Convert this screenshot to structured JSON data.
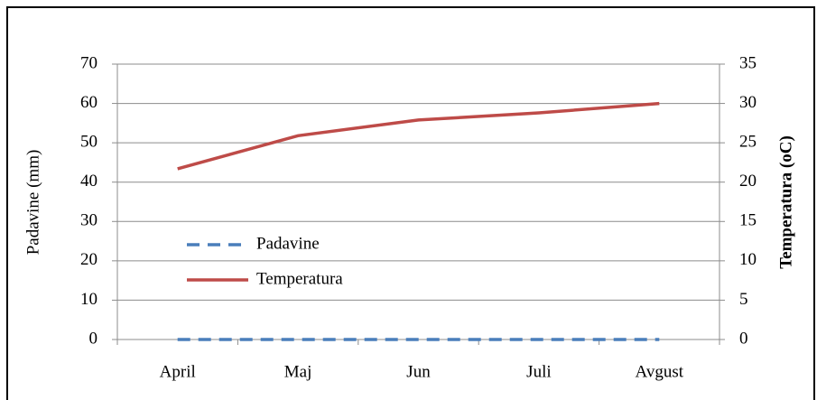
{
  "chart_data": {
    "type": "line",
    "categories": [
      "April",
      "Maj",
      "Jun",
      "Juli",
      "Avgust"
    ],
    "series": [
      {
        "name": "Padavine",
        "color": "#4a7ebb",
        "dash": true,
        "values": [
          0,
          0,
          0,
          0,
          0
        ]
      },
      {
        "name": "Temperatura",
        "color": "#be4b48",
        "axis": "y2",
        "values": [
          21.7,
          25.9,
          27.9,
          28.8,
          30.0
        ]
      }
    ],
    "ylabel": "Padavine (mm)",
    "y2label": "Temperatura (oC)",
    "ylim": [
      0,
      70
    ],
    "yticks": [
      0,
      10,
      20,
      30,
      40,
      50,
      60,
      70
    ],
    "y2lim": [
      0,
      35
    ],
    "y2ticks": [
      0,
      5,
      10,
      15,
      20,
      25,
      30,
      35
    ],
    "grid": true,
    "legend": "lower left"
  }
}
